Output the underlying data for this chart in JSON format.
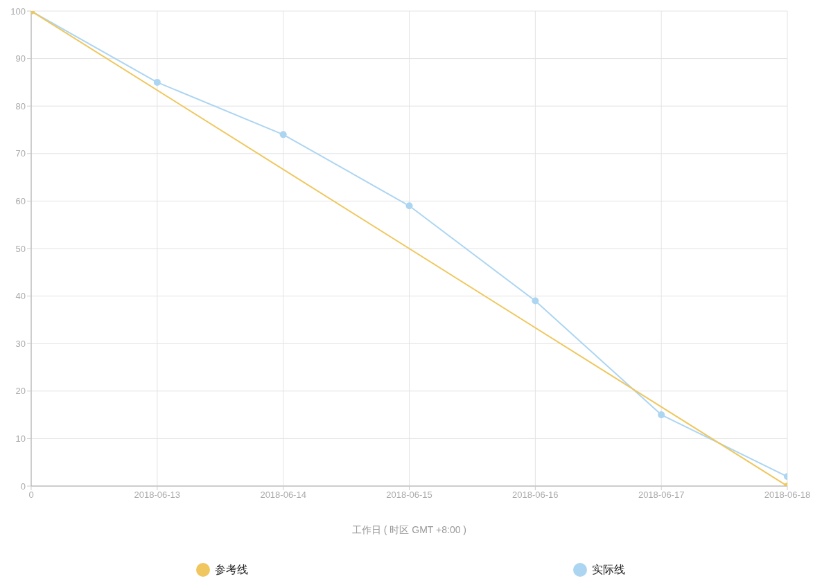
{
  "chart_data": {
    "type": "line",
    "xlabel": "工作日 ( 时区 GMT +8:00 )",
    "categories": [
      "0",
      "2018-06-13",
      "2018-06-14",
      "2018-06-15",
      "2018-06-16",
      "2018-06-17",
      "2018-06-18"
    ],
    "series": [
      {
        "name": "参考线",
        "color": "#efc75e",
        "values": [
          100,
          null,
          null,
          null,
          null,
          null,
          0
        ]
      },
      {
        "name": "实际线",
        "color": "#acd5f2",
        "values": [
          100,
          85,
          74,
          59,
          39,
          15,
          2
        ]
      }
    ],
    "ylim": [
      0,
      100
    ],
    "yticks": [
      0,
      10,
      20,
      30,
      40,
      50,
      60,
      70,
      80,
      90,
      100
    ],
    "grid": true,
    "legend": "bottom",
    "marker": "circle",
    "line_style": "solid"
  }
}
